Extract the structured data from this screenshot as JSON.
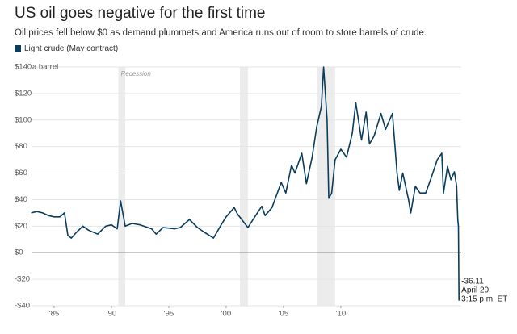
{
  "chart_data": {
    "type": "line",
    "title": "US oil goes negative for the first time",
    "subtitle": "Oil prices fell below $0 as demand plummets and America runs out of room to store barrels of crude.",
    "y_unit": "a barrel",
    "recession_label": "Recession",
    "recessions": [
      [
        1990.6,
        1991.2
      ],
      [
        2001.2,
        2001.9
      ],
      [
        2007.9,
        2009.5
      ]
    ],
    "annotation": [
      "April 20",
      "3:15 p.m. ET"
    ],
    "x": [
      1983.0,
      1983.5,
      1984.0,
      1984.5,
      1985.0,
      1985.5,
      1985.9,
      1986.2,
      1986.5,
      1986.9,
      1987.5,
      1988.0,
      1988.8,
      1989.5,
      1990.0,
      1990.5,
      1990.8,
      1991.2,
      1991.8,
      1992.5,
      1993.5,
      1993.9,
      1994.5,
      1995.5,
      1996.0,
      1996.8,
      1997.5,
      1998.0,
      1998.9,
      1999.5,
      2000.0,
      2000.7,
      2001.0,
      2001.9,
      2002.5,
      2003.1,
      2003.4,
      2004.0,
      2004.8,
      2005.2,
      2005.7,
      2006.0,
      2006.6,
      2007.0,
      2007.5,
      2007.9,
      2008.3,
      2008.5,
      2008.8,
      2008.95,
      2009.2,
      2009.5,
      2010.0,
      2010.5,
      2011.0,
      2011.3,
      2011.8,
      2012.2,
      2012.5,
      2012.9,
      2013.5,
      2013.9,
      2014.5,
      2014.9,
      2015.1,
      2015.4,
      2015.9,
      2016.1,
      2016.5,
      2016.9,
      2017.4,
      2017.9,
      2018.4,
      2018.8,
      2018.95,
      2019.3,
      2019.6,
      2019.9,
      2020.1,
      2020.2,
      2020.25,
      2020.3
    ],
    "series": [
      {
        "name": "Light crude (May contract)",
        "color": "#0b3d5c",
        "values": [
          30,
          31,
          30,
          28,
          27,
          27,
          30,
          13,
          11,
          15,
          20,
          17,
          14,
          20,
          21,
          18,
          39,
          20,
          22,
          21,
          18,
          14,
          19,
          18,
          19,
          25,
          19,
          16,
          11,
          20,
          27,
          34,
          29,
          19,
          27,
          35,
          28,
          34,
          53,
          45,
          66,
          60,
          75,
          52,
          72,
          95,
          110,
          140,
          100,
          41,
          45,
          70,
          78,
          72,
          90,
          113,
          85,
          106,
          82,
          88,
          105,
          93,
          105,
          60,
          47,
          60,
          40,
          30,
          50,
          45,
          45,
          57,
          70,
          75,
          45,
          65,
          55,
          61,
          50,
          25,
          20,
          -36.11
        ]
      }
    ],
    "xlim": [
      1983.1,
      2020.5
    ],
    "xticks": [
      {
        "value": 1985,
        "label": "'85"
      },
      {
        "value": 1990,
        "label": "'90"
      },
      {
        "value": 1995,
        "label": "'95"
      },
      {
        "value": 2000,
        "label": "'00"
      },
      {
        "value": 2005,
        "label": "'05"
      },
      {
        "value": 2010,
        "label": "'10"
      }
    ],
    "ylim": [
      -40,
      140
    ],
    "yticks": [
      {
        "value": -40,
        "label": "-$40"
      },
      {
        "value": -20,
        "label": "-$20"
      },
      {
        "value": 0,
        "label": "$0"
      },
      {
        "value": 20,
        "label": "$20"
      },
      {
        "value": 40,
        "label": "$40"
      },
      {
        "value": 60,
        "label": "$60"
      },
      {
        "value": 80,
        "label": "$80"
      },
      {
        "value": 100,
        "label": "$100"
      },
      {
        "value": 120,
        "label": "$120"
      },
      {
        "value": 140,
        "label": "$140"
      }
    ],
    "grid": true
  }
}
